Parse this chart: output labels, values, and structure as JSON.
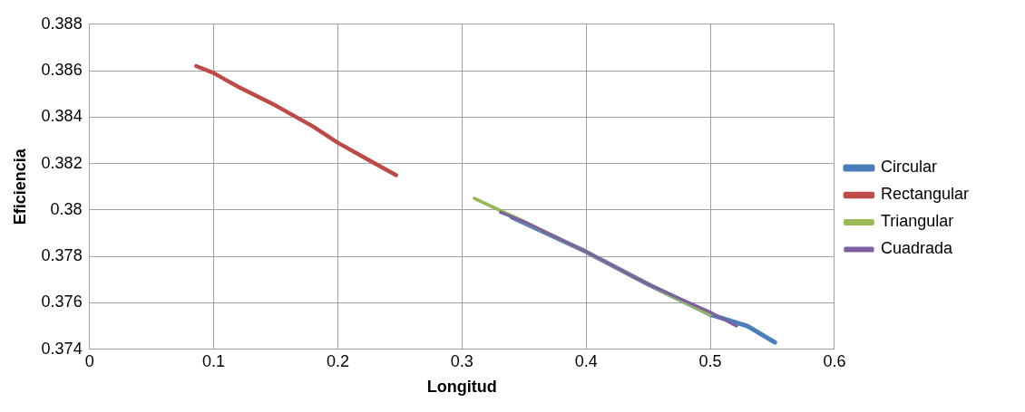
{
  "chart_data": {
    "type": "line",
    "xlabel": "Longitud",
    "ylabel": "Eficiencia",
    "xlim": [
      0,
      0.6
    ],
    "xticks": [
      0,
      0.1,
      0.2,
      0.3,
      0.4,
      0.5,
      0.6
    ],
    "ylim": [
      0.374,
      0.388
    ],
    "yticks": [
      0.374,
      0.376,
      0.378,
      0.38,
      0.382,
      0.384,
      0.386,
      0.388
    ],
    "grid": true,
    "legend": "right",
    "marker": "none",
    "line_style": "solid",
    "series": [
      {
        "name": "Circular",
        "color": "#4a7ebb",
        "x": [
          0.34,
          0.4,
          0.45,
          0.5,
          0.53,
          0.552
        ],
        "values": [
          0.3797,
          0.3782,
          0.3768,
          0.3755,
          0.375,
          0.3743
        ]
      },
      {
        "name": "Rectangular",
        "color": "#be4b48",
        "x": [
          0.086,
          0.1,
          0.12,
          0.15,
          0.18,
          0.2,
          0.22,
          0.247
        ],
        "values": [
          0.3862,
          0.3859,
          0.3853,
          0.3845,
          0.3836,
          0.3829,
          0.3823,
          0.3815
        ]
      },
      {
        "name": "Triangular",
        "color": "#98b954",
        "x": [
          0.31,
          0.35,
          0.4,
          0.45,
          0.5
        ],
        "values": [
          0.3805,
          0.3795,
          0.3782,
          0.3768,
          0.3755
        ]
      },
      {
        "name": "Cuadrada",
        "color": "#7d60a0",
        "x": [
          0.331,
          0.35,
          0.4,
          0.45,
          0.5,
          0.521
        ],
        "values": [
          0.3799,
          0.3795,
          0.3782,
          0.3768,
          0.3756,
          0.375
        ]
      }
    ]
  }
}
